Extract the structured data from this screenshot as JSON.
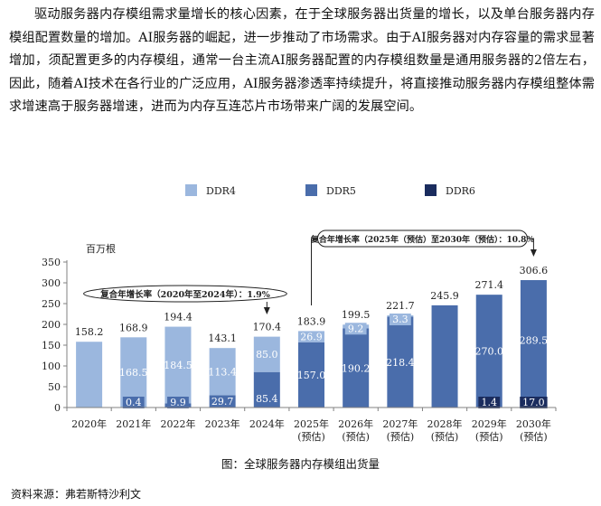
{
  "paragraph": "驱动服务器内存模组需求量增长的核心因素，在于全球服务器出货量的增长，以及单台服务器内存模组配置数量的增加。AI服务器的崛起，进一步推动了市场需求。由于AI服务器对内存容量的需求显著增加，须配置更多的内存模组，通常一台主流AI服务器配置的内存模组数量是通用服务器的2倍左右，因此，随着AI技术在各行业的广泛应用，AI服务器渗透率持续提升，将直接推动服务器内存模组整体需求增速高于服务器增速，进而为内存互连芯片市场带来广阔的发展空间。",
  "caption": "图：全球服务器内存模组出货量",
  "source": "资料来源：弗若斯特沙利文",
  "colors": {
    "DDR4": "#9bb7de",
    "DDR5": "#4a6dab",
    "DDR6": "#1a2c5e",
    "axis": "#808080"
  },
  "chart_data": {
    "type": "bar",
    "stacked": true,
    "unit_label": "百万根",
    "ylim": [
      0,
      350
    ],
    "yticks": [
      0,
      50,
      100,
      150,
      200,
      250,
      300,
      350
    ],
    "grid": false,
    "legend_position": "top",
    "categories": [
      "2020年",
      "2021年",
      "2022年",
      "2023年",
      "2024年",
      "2025年\n(预估)",
      "2026年\n(预估)",
      "2027年\n(预估)",
      "2028年\n(预估)",
      "2029年\n(预估)",
      "2030年\n(预估)"
    ],
    "series": [
      {
        "name": "DDR4",
        "values": [
          158.2,
          168.5,
          184.5,
          113.4,
          85.0,
          26.9,
          9.2,
          3.3,
          null,
          null,
          null
        ]
      },
      {
        "name": "DDR5",
        "values": [
          null,
          0.4,
          9.9,
          29.7,
          85.4,
          157.0,
          190.2,
          218.4,
          245.9,
          270.0,
          289.5
        ]
      },
      {
        "name": "DDR6",
        "values": [
          null,
          null,
          null,
          null,
          null,
          null,
          null,
          null,
          null,
          1.4,
          17.0
        ]
      }
    ],
    "totals": [
      158.2,
      168.9,
      194.4,
      143.1,
      170.4,
      183.9,
      199.5,
      221.7,
      245.9,
      271.4,
      306.6
    ],
    "segment_labels": [
      [
        "",
        "",
        ""
      ],
      [
        "168.5",
        "0.4",
        ""
      ],
      [
        "184.5",
        "9.9",
        ""
      ],
      [
        "113.4",
        "29.7",
        ""
      ],
      [
        "85.0",
        "85.4",
        ""
      ],
      [
        "26.9",
        "157.0",
        ""
      ],
      [
        "9.2",
        "190.2",
        ""
      ],
      [
        "3.3",
        "218.4",
        ""
      ],
      [
        "",
        "",
        ""
      ],
      [
        "",
        "270.0",
        "1.4"
      ],
      [
        "",
        "289.5",
        "17.0"
      ]
    ],
    "annotations": [
      {
        "text": "复合年增长率（2020年至2024年）：1.9%",
        "from_category": 0,
        "to_category": 4
      },
      {
        "text": "复合年增长率（2025年（预估）至2030年（预估）：10.8%",
        "from_category": 5,
        "to_category": 10
      }
    ]
  }
}
